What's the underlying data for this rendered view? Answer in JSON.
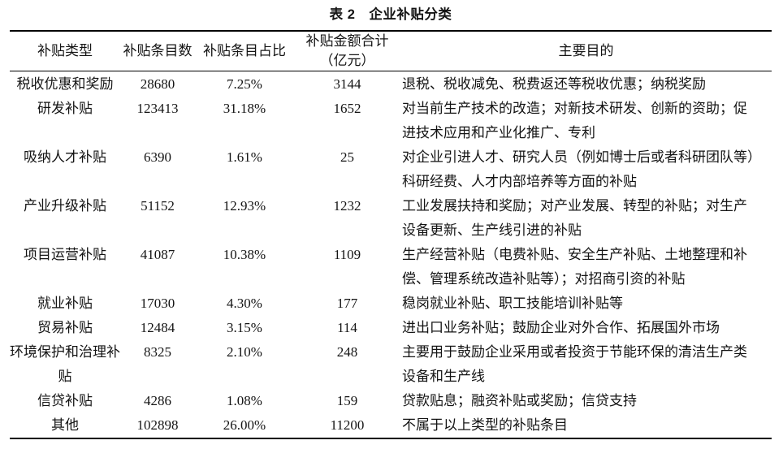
{
  "title": "表 2　企业补贴分类",
  "table": {
    "columns": [
      {
        "label": "补贴类型"
      },
      {
        "label": "补贴条目数"
      },
      {
        "label": "补贴条目占比"
      },
      {
        "label": "补贴金额合计",
        "label2": "（亿元）"
      },
      {
        "label": "主要目的"
      }
    ],
    "rows": [
      {
        "type": "税收优惠和奖励",
        "count": "28680",
        "share": "7.25%",
        "amount": "3144",
        "purpose": "退税、税收减免、税费返还等税收优惠；纳税奖励"
      },
      {
        "type": "研发补贴",
        "count": "123413",
        "share": "31.18%",
        "amount": "1652",
        "purpose": "对当前生产技术的改造；对新技术研发、创新的资助；促进技术应用和产业化推广、专利"
      },
      {
        "type": "吸纳人才补贴",
        "count": "6390",
        "share": "1.61%",
        "amount": "25",
        "purpose": "对企业引进人才、研究人员（例如博士后或者科研团队等）科研经费、人才内部培养等方面的补贴"
      },
      {
        "type": "产业升级补贴",
        "count": "51152",
        "share": "12.93%",
        "amount": "1232",
        "purpose": "工业发展扶持和奖励；对产业发展、转型的补贴；对生产设备更新、生产线引进的补贴"
      },
      {
        "type": "项目运营补贴",
        "count": "41087",
        "share": "10.38%",
        "amount": "1109",
        "purpose": "生产经营补贴（电费补贴、安全生产补贴、土地整理和补偿、管理系统改造补贴等）；对招商引资的补贴"
      },
      {
        "type": "就业补贴",
        "count": "17030",
        "share": "4.30%",
        "amount": "177",
        "purpose": "稳岗就业补贴、职工技能培训补贴等"
      },
      {
        "type": "贸易补贴",
        "count": "12484",
        "share": "3.15%",
        "amount": "114",
        "purpose": "进出口业务补贴；鼓励企业对外合作、拓展国外市场"
      },
      {
        "type": "环境保护和治理补贴",
        "count": "8325",
        "share": "2.10%",
        "amount": "248",
        "purpose": "主要用于鼓励企业采用或者投资于节能环保的清洁生产类设备和生产线"
      },
      {
        "type": "信贷补贴",
        "count": "4286",
        "share": "1.08%",
        "amount": "159",
        "purpose": "贷款贴息；融资补贴或奖励；信贷支持"
      },
      {
        "type": "其他",
        "count": "102898",
        "share": "26.00%",
        "amount": "11200",
        "purpose": "不属于以上类型的补贴条目"
      }
    ]
  }
}
